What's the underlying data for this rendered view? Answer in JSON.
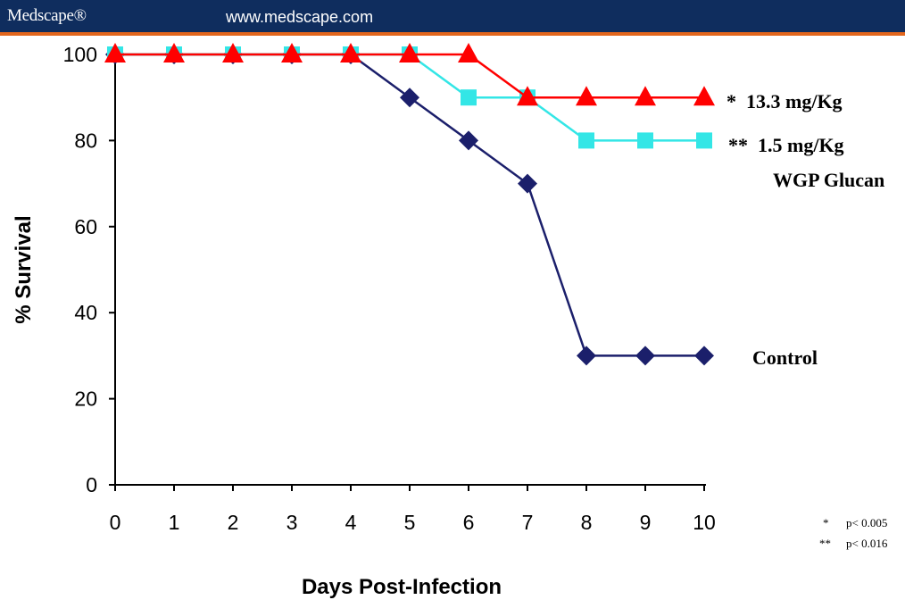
{
  "header": {
    "brand": "Medscape®",
    "url": "www.medscape.com",
    "bar_color": "#0f2d5e",
    "accent_color": "#e2661c"
  },
  "chart_data": {
    "type": "line",
    "title": "",
    "xlabel": "Days Post-Infection",
    "ylabel": "% Survival",
    "x": [
      0,
      1,
      2,
      3,
      4,
      5,
      6,
      7,
      8,
      9,
      10
    ],
    "xlim": [
      0,
      10
    ],
    "ylim": [
      0,
      100
    ],
    "yticks": [
      0,
      20,
      40,
      60,
      80,
      100
    ],
    "grid": false,
    "series": [
      {
        "marker": "diamond",
        "color": "#1b1f6b",
        "values": [
          100,
          100,
          100,
          100,
          100,
          90,
          80,
          70,
          30,
          30,
          30
        ]
      },
      {
        "marker": "square",
        "color": "#33e6e6",
        "values": [
          100,
          100,
          100,
          100,
          100,
          100,
          90,
          90,
          80,
          80,
          80
        ]
      },
      {
        "marker": "triangle",
        "color": "#ff0000",
        "values": [
          100,
          100,
          100,
          100,
          100,
          100,
          100,
          90,
          90,
          90,
          90
        ]
      }
    ],
    "annotations": {
      "high_dose": "*  13.3 mg/Kg",
      "low_dose_line1": "**  1.5 mg/Kg",
      "low_dose_line2": "WGP Glucan",
      "control": "Control"
    },
    "footnotes": [
      {
        "mark": "*",
        "text": "p< 0.005"
      },
      {
        "mark": "**",
        "text": "p< 0.016"
      }
    ]
  }
}
